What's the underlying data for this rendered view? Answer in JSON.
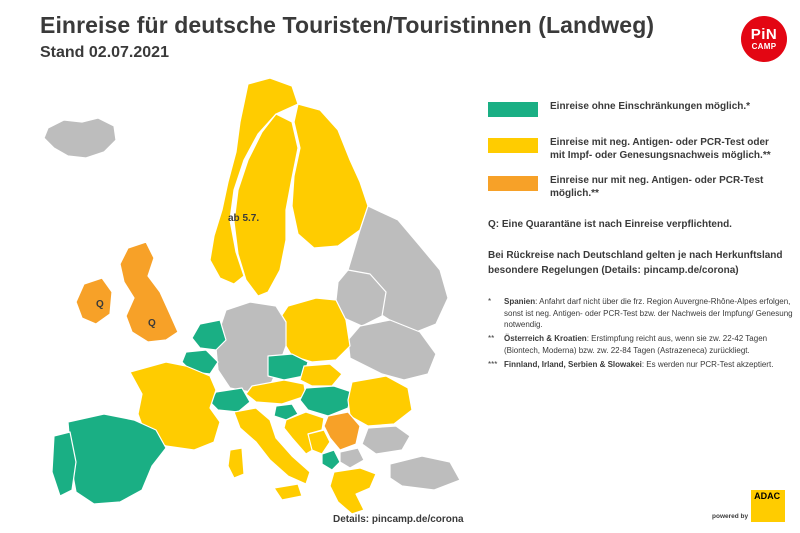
{
  "header": {
    "title": "Einreise für deutsche Touristen/Touristinnen (Landweg)",
    "subtitle": "Stand 02.07.2021"
  },
  "brand": {
    "logo_line1": "PiN",
    "logo_line2": "CAMP",
    "logo_color": "#e30613",
    "powered_by": "powered by",
    "partner": "ADAC",
    "partner_color": "#ffcc00"
  },
  "colors": {
    "green": "#1aaf84",
    "yellow": "#ffcc00",
    "orange": "#f7a128",
    "grey": "#bdbdbd"
  },
  "legend": [
    {
      "color": "#1aaf84",
      "text": "Einreise ohne Einschränkungen möglich.*"
    },
    {
      "color": "#ffcc00",
      "text": "Einreise mit neg. Antigen- oder PCR-Test oder mit Impf- oder Genesungsnachweis möglich.**"
    },
    {
      "color": "#f7a128",
      "text": "Einreise nur mit neg. Antigen- oder PCR-Test möglich.**"
    }
  ],
  "notes": {
    "quarantine": "Q: Eine Quarantäne ist nach Einreise verpflichtend.",
    "return": "Bei Rückreise nach Deutschland gelten je nach Herkunftsland besondere Regelungen (Details: pincamp.de/corona)"
  },
  "footnotes": [
    {
      "mark": "*",
      "bold": "Spanien",
      "text": ": Anfahrt darf nicht über die frz. Region Auvergne-Rhône-Alpes erfolgen, sonst ist neg. Antigen- oder PCR-Test bzw. der Nachweis der Impfung/ Genesung notwendig."
    },
    {
      "mark": "**",
      "bold": "Österreich & Kroatien",
      "text": ": Erstimpfung reicht aus, wenn sie zw. 22-42 Tagen (Biontech, Moderna) bzw. zw. 22-84 Tagen (Astrazeneca) zurückliegt."
    },
    {
      "mark": "***",
      "bold": "Finnland, Irland, Serbien & Slowakei",
      "text": ": Es werden nur PCR-Test akzeptiert."
    }
  ],
  "map": {
    "labels": {
      "sweden_note": "ab 5.7.",
      "ireland_q": "Q",
      "uk_q": "Q"
    },
    "countries": [
      {
        "name": "iceland",
        "status": "grey"
      },
      {
        "name": "norway",
        "status": "yellow"
      },
      {
        "name": "sweden",
        "status": "yellow"
      },
      {
        "name": "finland",
        "status": "yellow"
      },
      {
        "name": "ireland",
        "status": "orange"
      },
      {
        "name": "united-kingdom",
        "status": "orange"
      },
      {
        "name": "spain",
        "status": "green"
      },
      {
        "name": "portugal",
        "status": "green"
      },
      {
        "name": "france",
        "status": "yellow"
      },
      {
        "name": "netherlands",
        "status": "green"
      },
      {
        "name": "germany",
        "status": "grey"
      },
      {
        "name": "czechia",
        "status": "green"
      },
      {
        "name": "hungary",
        "status": "green"
      },
      {
        "name": "switzerland",
        "status": "green"
      },
      {
        "name": "slovenia",
        "status": "green"
      },
      {
        "name": "serbia",
        "status": "orange"
      },
      {
        "name": "montenegro",
        "status": "green"
      },
      {
        "name": "poland",
        "status": "yellow"
      },
      {
        "name": "austria",
        "status": "yellow"
      },
      {
        "name": "italy",
        "status": "yellow"
      },
      {
        "name": "croatia",
        "status": "yellow"
      },
      {
        "name": "romania",
        "status": "yellow"
      },
      {
        "name": "greece",
        "status": "yellow"
      },
      {
        "name": "belarus",
        "status": "grey"
      },
      {
        "name": "ukraine",
        "status": "grey"
      },
      {
        "name": "russia",
        "status": "grey"
      },
      {
        "name": "bulgaria",
        "status": "grey"
      },
      {
        "name": "turkey",
        "status": "grey"
      }
    ]
  },
  "footer": {
    "details": "Details: pincamp.de/corona"
  }
}
